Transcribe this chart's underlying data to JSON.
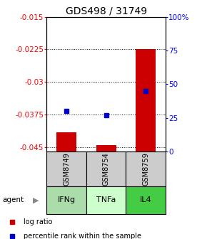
{
  "title": "GDS498 / 31749",
  "samples": [
    "GSM8749",
    "GSM8754",
    "GSM8759"
  ],
  "agents": [
    "IFNg",
    "TNFa",
    "IL4"
  ],
  "log_ratios": [
    -0.0415,
    -0.0445,
    -0.0225
  ],
  "percentile_ranks": [
    30,
    27,
    45
  ],
  "ylim_left": [
    -0.046,
    -0.015
  ],
  "ylim_right": [
    0,
    100
  ],
  "yticks_left": [
    -0.015,
    -0.0225,
    -0.03,
    -0.0375,
    -0.045
  ],
  "yticks_right": [
    100,
    75,
    50,
    25,
    0
  ],
  "ytick_labels_left": [
    "-0.015",
    "-0.0225",
    "-0.03",
    "-0.0375",
    "-0.045"
  ],
  "ytick_labels_right": [
    "100%",
    "75",
    "50",
    "25",
    "0"
  ],
  "bar_color": "#cc0000",
  "dot_color": "#0000cc",
  "agent_colors": [
    "#aaddaa",
    "#ccffcc",
    "#44cc44"
  ],
  "sample_box_color": "#cccccc",
  "bar_width": 0.5,
  "title_fontsize": 10,
  "tick_fontsize": 7.5,
  "legend_fontsize": 7,
  "sample_fontsize": 7,
  "agent_fontsize": 8
}
